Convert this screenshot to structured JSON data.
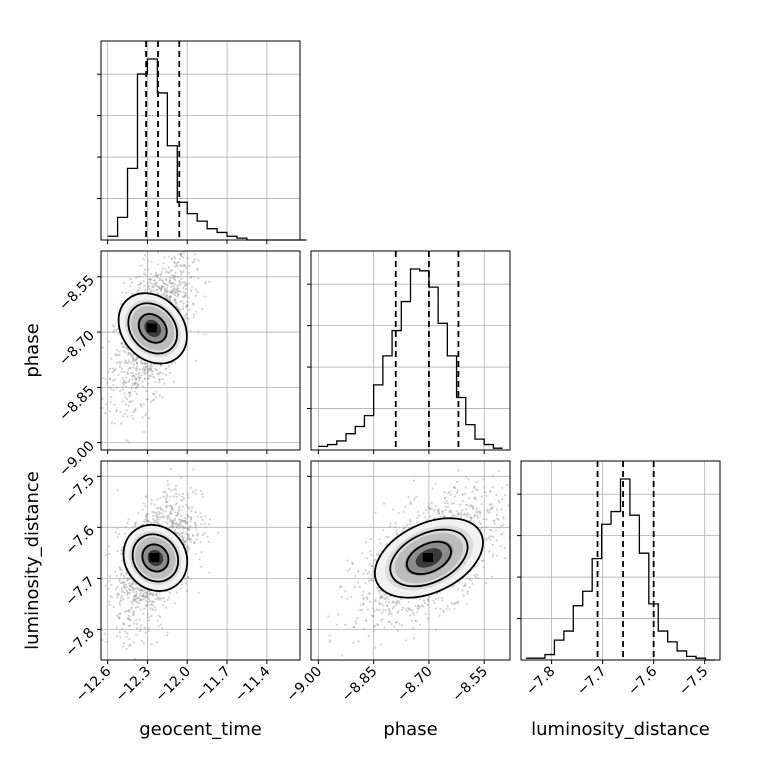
{
  "chart_data": {
    "type": "corner",
    "parameters": [
      "geocent_time",
      "phase",
      "luminosity_distance"
    ],
    "grid": true,
    "axes": {
      "geocent_time": {
        "label": "geocent_time",
        "range": [
          -12.65,
          -11.15
        ],
        "ticks": [
          -12.6,
          -12.3,
          -12.0,
          -11.7,
          -11.4
        ],
        "tick_labels": [
          "−12.6",
          "−12.3",
          "−12.0",
          "−11.7",
          "−11.4"
        ]
      },
      "phase": {
        "label": "phase",
        "range": [
          -9.02,
          -8.48
        ],
        "ticks": [
          -9.0,
          -8.85,
          -8.7,
          -8.55
        ],
        "tick_labels": [
          "−9.00",
          "−8.85",
          "−8.70",
          "−8.55"
        ]
      },
      "luminosity_distance": {
        "label": "luminosity_distance",
        "range": [
          -7.86,
          -7.47
        ],
        "ticks": [
          -7.8,
          -7.7,
          -7.6,
          -7.5
        ],
        "tick_labels": [
          "−7.8",
          "−7.7",
          "−7.6",
          "−7.5"
        ]
      }
    },
    "histograms": [
      {
        "param": "geocent_time",
        "bin_start": -12.6,
        "bin_width": 0.075,
        "counts": [
          2,
          12,
          38,
          88,
          96,
          78,
          50,
          20,
          14,
          10,
          6,
          4,
          2,
          1,
          0,
          0,
          0,
          0,
          0,
          0
        ],
        "quantiles": [
          -12.31,
          -12.22,
          -12.06
        ]
      },
      {
        "param": "phase",
        "bin_start": -9.0,
        "bin_width": 0.025,
        "counts": [
          2,
          3,
          5,
          9,
          13,
          19,
          36,
          52,
          66,
          82,
          100,
          99,
          90,
          70,
          52,
          29,
          14,
          6,
          3,
          1
        ],
        "quantiles": [
          -8.79,
          -8.7,
          -8.62
        ]
      },
      {
        "param": "luminosity_distance",
        "bin_start": -7.85,
        "bin_width": 0.0185,
        "counts": [
          1,
          1,
          3,
          11,
          16,
          30,
          38,
          56,
          75,
          82,
          100,
          80,
          59,
          31,
          16,
          10,
          5,
          2,
          1,
          0
        ],
        "quantiles": [
          -7.71,
          -7.66,
          -7.6
        ]
      }
    ],
    "correlations": [
      {
        "x": "geocent_time",
        "y": "phase",
        "center": [
          -12.26,
          -8.69
        ],
        "rho": 0.55
      },
      {
        "x": "geocent_time",
        "y": "luminosity_distance",
        "center": [
          -12.24,
          -7.66
        ],
        "rho": 0.5
      },
      {
        "x": "phase",
        "y": "luminosity_distance",
        "center": [
          -8.7,
          -7.66
        ],
        "rho": 0.6
      }
    ]
  }
}
